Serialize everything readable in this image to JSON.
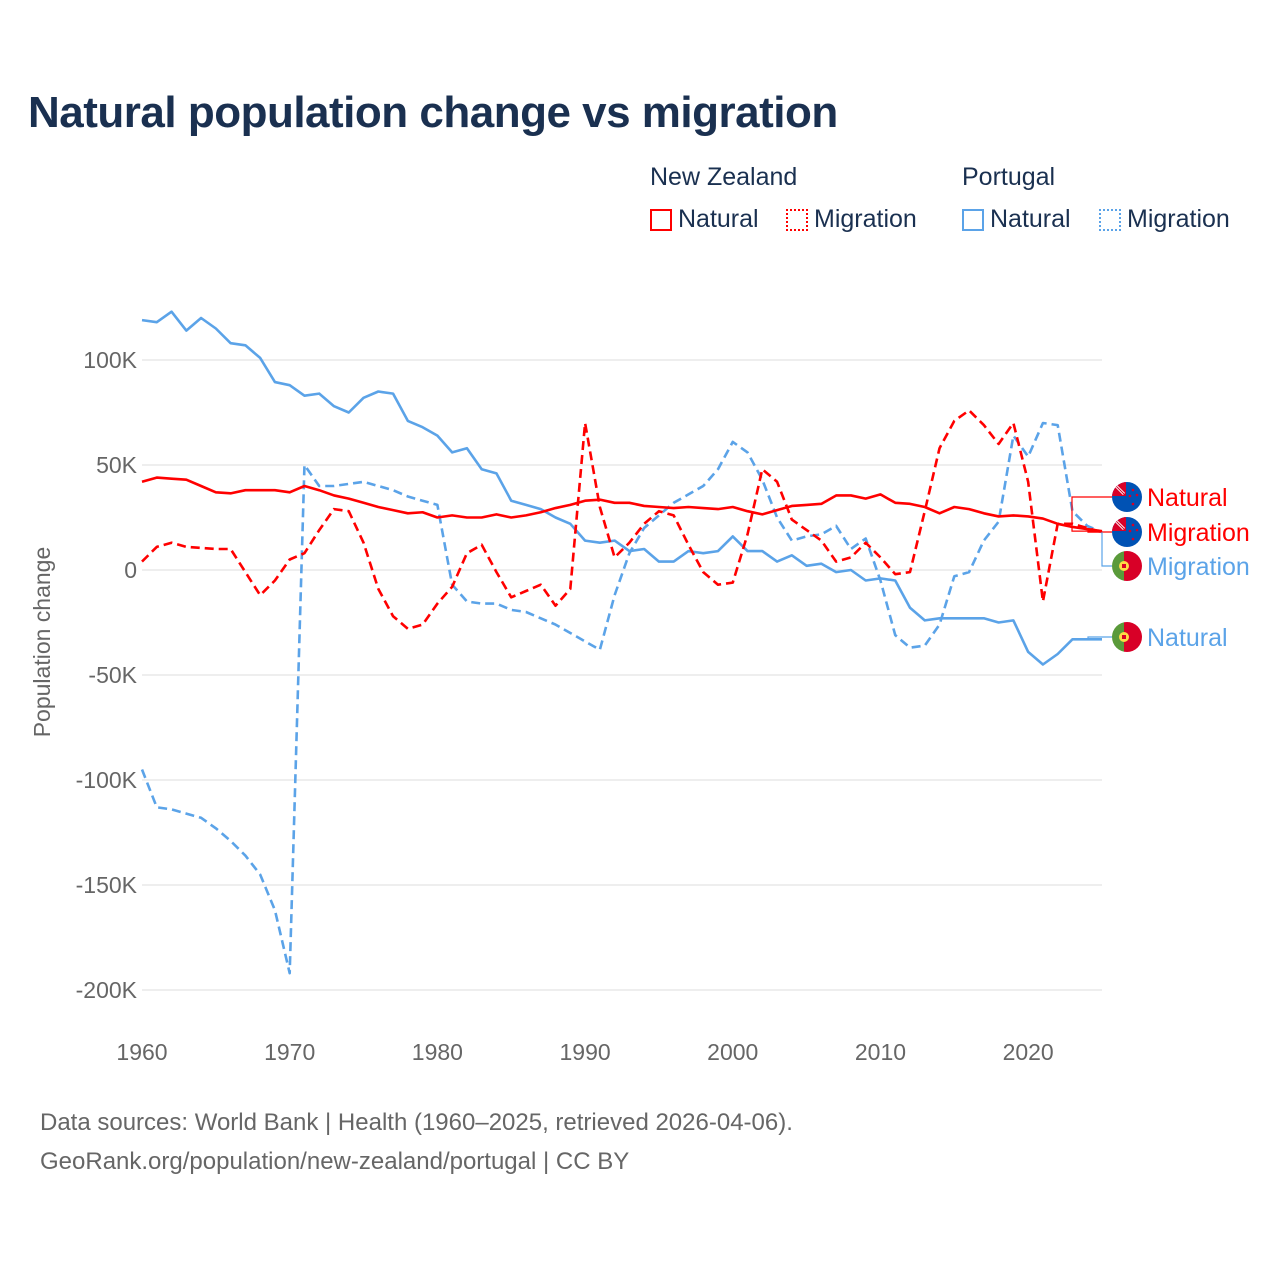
{
  "chart_data": {
    "type": "line",
    "title": "Natural population change vs migration",
    "ylabel": "Population change",
    "xlabel": "",
    "ylim": [
      -200000,
      100000
    ],
    "xlim": [
      1960,
      2025
    ],
    "yticks": [
      100000,
      50000,
      0,
      -50000,
      -100000,
      -150000,
      -200000
    ],
    "ytick_labels": [
      "100K",
      "50K",
      "0",
      "-50K",
      "-100K",
      "-150K",
      "-200K"
    ],
    "xticks": [
      1960,
      1970,
      1980,
      1990,
      2000,
      2010,
      2020
    ],
    "xtick_labels": [
      "1960",
      "1970",
      "1980",
      "1990",
      "2000",
      "2010",
      "2020"
    ],
    "grid": true,
    "legend_position": "top-right",
    "legend_groups": [
      {
        "name": "New Zealand",
        "items": [
          "Natural",
          "Migration"
        ]
      },
      {
        "name": "Portugal",
        "items": [
          "Natural",
          "Migration"
        ]
      }
    ],
    "x_start": 1960,
    "series": [
      {
        "name": "New Zealand Natural",
        "country": "New Zealand",
        "label": "Natural",
        "color": "#ff0000",
        "style": "solid",
        "values": [
          42,
          44,
          43.5,
          43,
          40,
          37,
          36.5,
          38,
          38,
          38,
          37,
          40,
          38,
          35.5,
          34,
          32,
          30,
          28.5,
          27,
          27.5,
          25,
          26,
          25,
          25,
          26.5,
          25,
          26,
          27.5,
          29.5,
          31,
          33,
          33.5,
          32,
          32,
          30.5,
          30,
          29.5,
          30,
          29.5,
          29,
          30,
          28,
          26.5,
          28.5,
          30.5,
          31,
          31.5,
          35.5,
          35.5,
          34,
          36,
          32,
          31.5,
          30,
          27,
          30,
          29,
          27,
          25.5,
          26,
          25.5,
          24.5,
          22,
          20.5,
          19.5,
          18.5
        ]
      },
      {
        "name": "New Zealand Migration",
        "country": "New Zealand",
        "label": "Migration",
        "color": "#ff0000",
        "style": "dashed",
        "values": [
          4,
          11,
          13,
          11,
          10.5,
          10,
          10,
          -1,
          -12,
          -5,
          5,
          8,
          19,
          29,
          28,
          13,
          -9,
          -22,
          -28,
          -26,
          -16,
          -8,
          8,
          12,
          -1,
          -13,
          -10,
          -7,
          -17,
          -9,
          70,
          30,
          6,
          13,
          22,
          28,
          26,
          12,
          -1,
          -7,
          -6,
          17,
          48,
          42,
          24,
          19,
          14,
          4,
          6,
          13,
          6,
          -2,
          -1,
          28,
          58,
          71,
          76,
          69,
          60,
          70,
          42,
          -15,
          22,
          22,
          20,
          18
        ]
      },
      {
        "name": "Portugal Natural",
        "country": "Portugal",
        "label": "Natural",
        "color": "#5ba3e8",
        "style": "solid",
        "values": [
          119,
          118,
          123,
          114,
          120,
          115,
          108,
          107,
          101,
          89.5,
          88,
          83,
          84,
          78,
          75,
          82,
          85,
          84,
          71,
          68,
          64,
          56,
          58,
          48,
          46,
          33,
          31,
          29,
          25,
          22,
          14,
          13,
          14,
          9,
          10,
          4,
          4,
          9,
          8,
          9,
          16,
          9,
          9,
          4,
          7,
          2,
          3,
          -1,
          0,
          -5,
          -4,
          -5,
          -18,
          -24,
          -23,
          -23,
          -23,
          -23,
          -25,
          -24,
          -39,
          -45,
          -40,
          -33,
          -33,
          -33
        ]
      },
      {
        "name": "Portugal Migration",
        "country": "Portugal",
        "label": "Migration",
        "color": "#5ba3e8",
        "style": "dashed",
        "values": [
          -95,
          -113,
          -114,
          -116,
          -118,
          -123,
          -129,
          -136,
          -145,
          -162,
          -192,
          50,
          40,
          40,
          41,
          42,
          40,
          38,
          35,
          33,
          31,
          -7,
          -15,
          -16,
          -16,
          -19,
          -20,
          -23,
          -26,
          -30,
          -34,
          -38,
          -12,
          8,
          20,
          26,
          32,
          36,
          40,
          48,
          61,
          56,
          43,
          25,
          14,
          16,
          17,
          21,
          10,
          15,
          -5,
          -31,
          -37,
          -36,
          -26,
          -3,
          -1,
          14,
          23,
          64,
          54,
          70,
          69,
          28,
          21,
          18
        ]
      }
    ],
    "values_unit": "thousands"
  },
  "footer": {
    "line1": "Data sources: World Bank | Health (1960–2025, retrieved 2026-04-06).",
    "line2": "GeoRank.org/population/new-zealand/portugal | CC BY"
  }
}
